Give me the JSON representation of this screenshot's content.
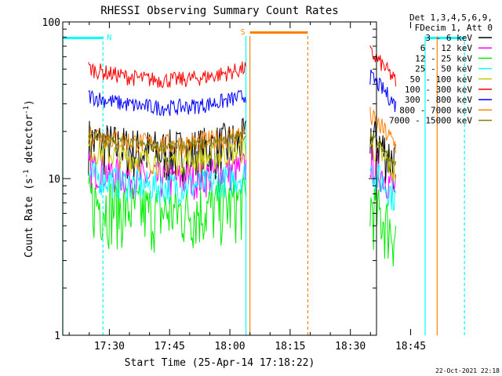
{
  "chart_data": {
    "type": "line",
    "title": "RHESSI Observing Summary Count Rates",
    "xlabel": "Start Time (25-Apr-14 17:18:22)",
    "ylabel_main": "Count Rate (s",
    "ylabel_sup1": "-1",
    "ylabel_mid": " detector",
    "ylabel_sup2": "-1",
    "ylabel_end": ")",
    "yscale": "log",
    "ylim": [
      1,
      100
    ],
    "xlim_min": [
      1038.4,
      1116.5
    ],
    "x_ticks": [
      {
        "t": 1050,
        "label": "17:30"
      },
      {
        "t": 1065,
        "label": "17:45"
      },
      {
        "t": 1080,
        "label": "18:00"
      },
      {
        "t": 1095,
        "label": "18:15"
      },
      {
        "t": 1110,
        "label": "18:30"
      },
      {
        "t": 1125,
        "label": "18:45"
      }
    ],
    "y_ticks": [
      {
        "v": 1,
        "label": "1"
      },
      {
        "v": 10,
        "label": "10"
      },
      {
        "v": 100,
        "label": "100"
      }
    ],
    "legend_header": [
      "Det 1,3,4,5,6,9,",
      "FDecim 1, Att 0"
    ],
    "legend_location": "right",
    "series": [
      {
        "name": "3 - 6 keV",
        "color": "#000000",
        "level": 15.5,
        "level2": 19.0,
        "spread": 0.1
      },
      {
        "name": "6 - 12 keV",
        "color": "#ff00ff",
        "level": 10.5,
        "level2": 13.0,
        "spread": 0.07
      },
      {
        "name": "12 - 25 keV",
        "color": "#00ee00",
        "level": 6.5,
        "level2": 6.8,
        "spread": 0.12
      },
      {
        "name": "25 - 50 keV",
        "color": "#00ffff",
        "level": 9.4,
        "level2": 11.5,
        "spread": 0.06
      },
      {
        "name": "50 - 100 keV",
        "color": "#cccc00",
        "level": 13.8,
        "level2": 16.5,
        "spread": 0.05
      },
      {
        "name": "100 - 300 keV",
        "color": "#ff0000",
        "level": 45,
        "level2": 64,
        "spread": 0.03
      },
      {
        "name": "300 - 800 keV",
        "color": "#0000ff",
        "level": 30,
        "level2": 45,
        "spread": 0.03
      },
      {
        "name": "800 - 7000 keV",
        "color": "#ff8000",
        "level": 17.5,
        "level2": 25,
        "spread": 0.04
      },
      {
        "name": "7000 - 15000 keV",
        "color": "#808000",
        "level": 17.0,
        "level2": 19.0,
        "spread": 0.02
      }
    ],
    "data_intervals_min": [
      [
        1044.8,
        1084.0
      ],
      [
        1114.9,
        1121.3
      ]
    ],
    "flags": [
      {
        "label": "N",
        "color": "#00ffff",
        "intervals": [
          [
            1038.4,
            1048.4
          ],
          [
            1128.6,
            1138.4
          ]
        ]
      },
      {
        "label": "S",
        "color": "#ff8000",
        "intervals": [
          [
            1085.0,
            1099.4
          ]
        ]
      }
    ],
    "vlines": [
      {
        "t": 1038.4,
        "color": "#00ffff",
        "dash": false
      },
      {
        "t": 1048.4,
        "color": "#00ffff",
        "dash": true
      },
      {
        "t": 1084.0,
        "color": "#00ffff",
        "dash": false
      },
      {
        "t": 1085.0,
        "color": "#ff8000",
        "dash": false
      },
      {
        "t": 1099.4,
        "color": "#ff8000",
        "dash": true
      },
      {
        "t": 1128.6,
        "color": "#00ffff",
        "dash": false
      },
      {
        "t": 1131.6,
        "color": "#ff8000",
        "dash": false
      },
      {
        "t": 1138.4,
        "color": "#00ffff",
        "dash": true
      }
    ],
    "timestamp": "22-Oct-2021 22:18"
  }
}
